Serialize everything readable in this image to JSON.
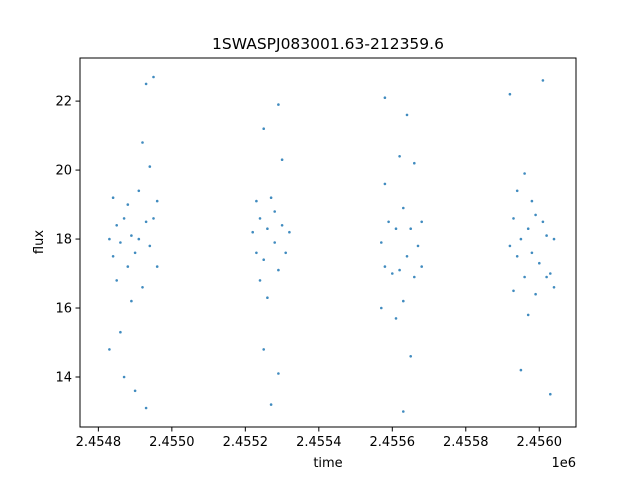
{
  "chart_data": {
    "type": "scatter",
    "title": "1SWASPJ083001.63-212359.6",
    "xlabel": "time",
    "ylabel": "flux",
    "x_offset_label": "1e6",
    "xlim": [
      2.45475,
      2.4561
    ],
    "ylim": [
      12.55,
      23.25
    ],
    "x_ticks": [
      2.4548,
      2.455,
      2.4552,
      2.4554,
      2.4556,
      2.4558,
      2.456
    ],
    "x_tick_labels": [
      "2.4548",
      "2.4550",
      "2.4552",
      "2.4554",
      "2.4556",
      "2.4558",
      "2.4560"
    ],
    "y_ticks": [
      14,
      16,
      18,
      20,
      22
    ],
    "y_tick_labels": [
      "14",
      "16",
      "18",
      "20",
      "22"
    ],
    "grid": false,
    "legend": "none",
    "point_color": "#1f77b4",
    "series": [
      {
        "values": [
          [
            2.45483,
            18.0
          ],
          [
            2.45483,
            14.8
          ],
          [
            2.45484,
            17.5
          ],
          [
            2.45484,
            19.2
          ],
          [
            2.45485,
            18.4
          ],
          [
            2.45485,
            16.8
          ],
          [
            2.45486,
            17.9
          ],
          [
            2.45486,
            15.3
          ],
          [
            2.45487,
            18.6
          ],
          [
            2.45487,
            14.0
          ],
          [
            2.45488,
            17.2
          ],
          [
            2.45488,
            19.0
          ],
          [
            2.45489,
            18.1
          ],
          [
            2.45489,
            16.2
          ],
          [
            2.4549,
            17.6
          ],
          [
            2.4549,
            13.6
          ],
          [
            2.45491,
            19.4
          ],
          [
            2.45491,
            18.0
          ],
          [
            2.45492,
            20.8
          ],
          [
            2.45492,
            16.6
          ],
          [
            2.45493,
            18.5
          ],
          [
            2.45493,
            22.5
          ],
          [
            2.45493,
            13.1
          ],
          [
            2.45494,
            17.8
          ],
          [
            2.45494,
            20.1
          ],
          [
            2.45495,
            18.6
          ],
          [
            2.45495,
            22.7
          ],
          [
            2.45496,
            19.1
          ],
          [
            2.45496,
            17.2
          ],
          [
            2.45522,
            18.2
          ],
          [
            2.45523,
            17.6
          ],
          [
            2.45523,
            19.1
          ],
          [
            2.45524,
            16.8
          ],
          [
            2.45524,
            18.6
          ],
          [
            2.45525,
            17.4
          ],
          [
            2.45525,
            21.2
          ],
          [
            2.45525,
            14.8
          ],
          [
            2.45526,
            18.3
          ],
          [
            2.45526,
            16.3
          ],
          [
            2.45527,
            19.2
          ],
          [
            2.45527,
            13.2
          ],
          [
            2.45528,
            17.9
          ],
          [
            2.45528,
            18.8
          ],
          [
            2.45529,
            17.1
          ],
          [
            2.45529,
            21.9
          ],
          [
            2.45529,
            14.1
          ],
          [
            2.4553,
            18.4
          ],
          [
            2.4553,
            20.3
          ],
          [
            2.45531,
            17.6
          ],
          [
            2.45532,
            18.2
          ],
          [
            2.45557,
            17.9
          ],
          [
            2.45557,
            16.0
          ],
          [
            2.45558,
            19.6
          ],
          [
            2.45558,
            22.1
          ],
          [
            2.45558,
            17.2
          ],
          [
            2.45559,
            18.5
          ],
          [
            2.4556,
            17.0
          ],
          [
            2.45561,
            18.3
          ],
          [
            2.45561,
            15.7
          ],
          [
            2.45562,
            20.4
          ],
          [
            2.45562,
            17.1
          ],
          [
            2.45563,
            16.2
          ],
          [
            2.45563,
            18.9
          ],
          [
            2.45563,
            13.0
          ],
          [
            2.45564,
            17.5
          ],
          [
            2.45564,
            21.6
          ],
          [
            2.45565,
            18.3
          ],
          [
            2.45565,
            14.6
          ],
          [
            2.45566,
            16.9
          ],
          [
            2.45566,
            20.2
          ],
          [
            2.45567,
            17.8
          ],
          [
            2.45568,
            17.2
          ],
          [
            2.45568,
            18.5
          ],
          [
            2.45592,
            17.8
          ],
          [
            2.45592,
            22.2
          ],
          [
            2.45593,
            18.6
          ],
          [
            2.45593,
            16.5
          ],
          [
            2.45594,
            17.5
          ],
          [
            2.45594,
            19.4
          ],
          [
            2.45595,
            18.0
          ],
          [
            2.45595,
            14.2
          ],
          [
            2.45596,
            19.9
          ],
          [
            2.45596,
            16.9
          ],
          [
            2.45597,
            18.3
          ],
          [
            2.45597,
            15.8
          ],
          [
            2.45598,
            17.6
          ],
          [
            2.45598,
            19.1
          ],
          [
            2.45599,
            16.4
          ],
          [
            2.45599,
            18.7
          ],
          [
            2.456,
            17.3
          ],
          [
            2.45601,
            18.5
          ],
          [
            2.45601,
            22.6
          ],
          [
            2.45602,
            16.9
          ],
          [
            2.45602,
            18.1
          ],
          [
            2.45603,
            17.0
          ],
          [
            2.45603,
            13.5
          ],
          [
            2.45604,
            18.0
          ],
          [
            2.45604,
            16.6
          ]
        ]
      }
    ]
  }
}
